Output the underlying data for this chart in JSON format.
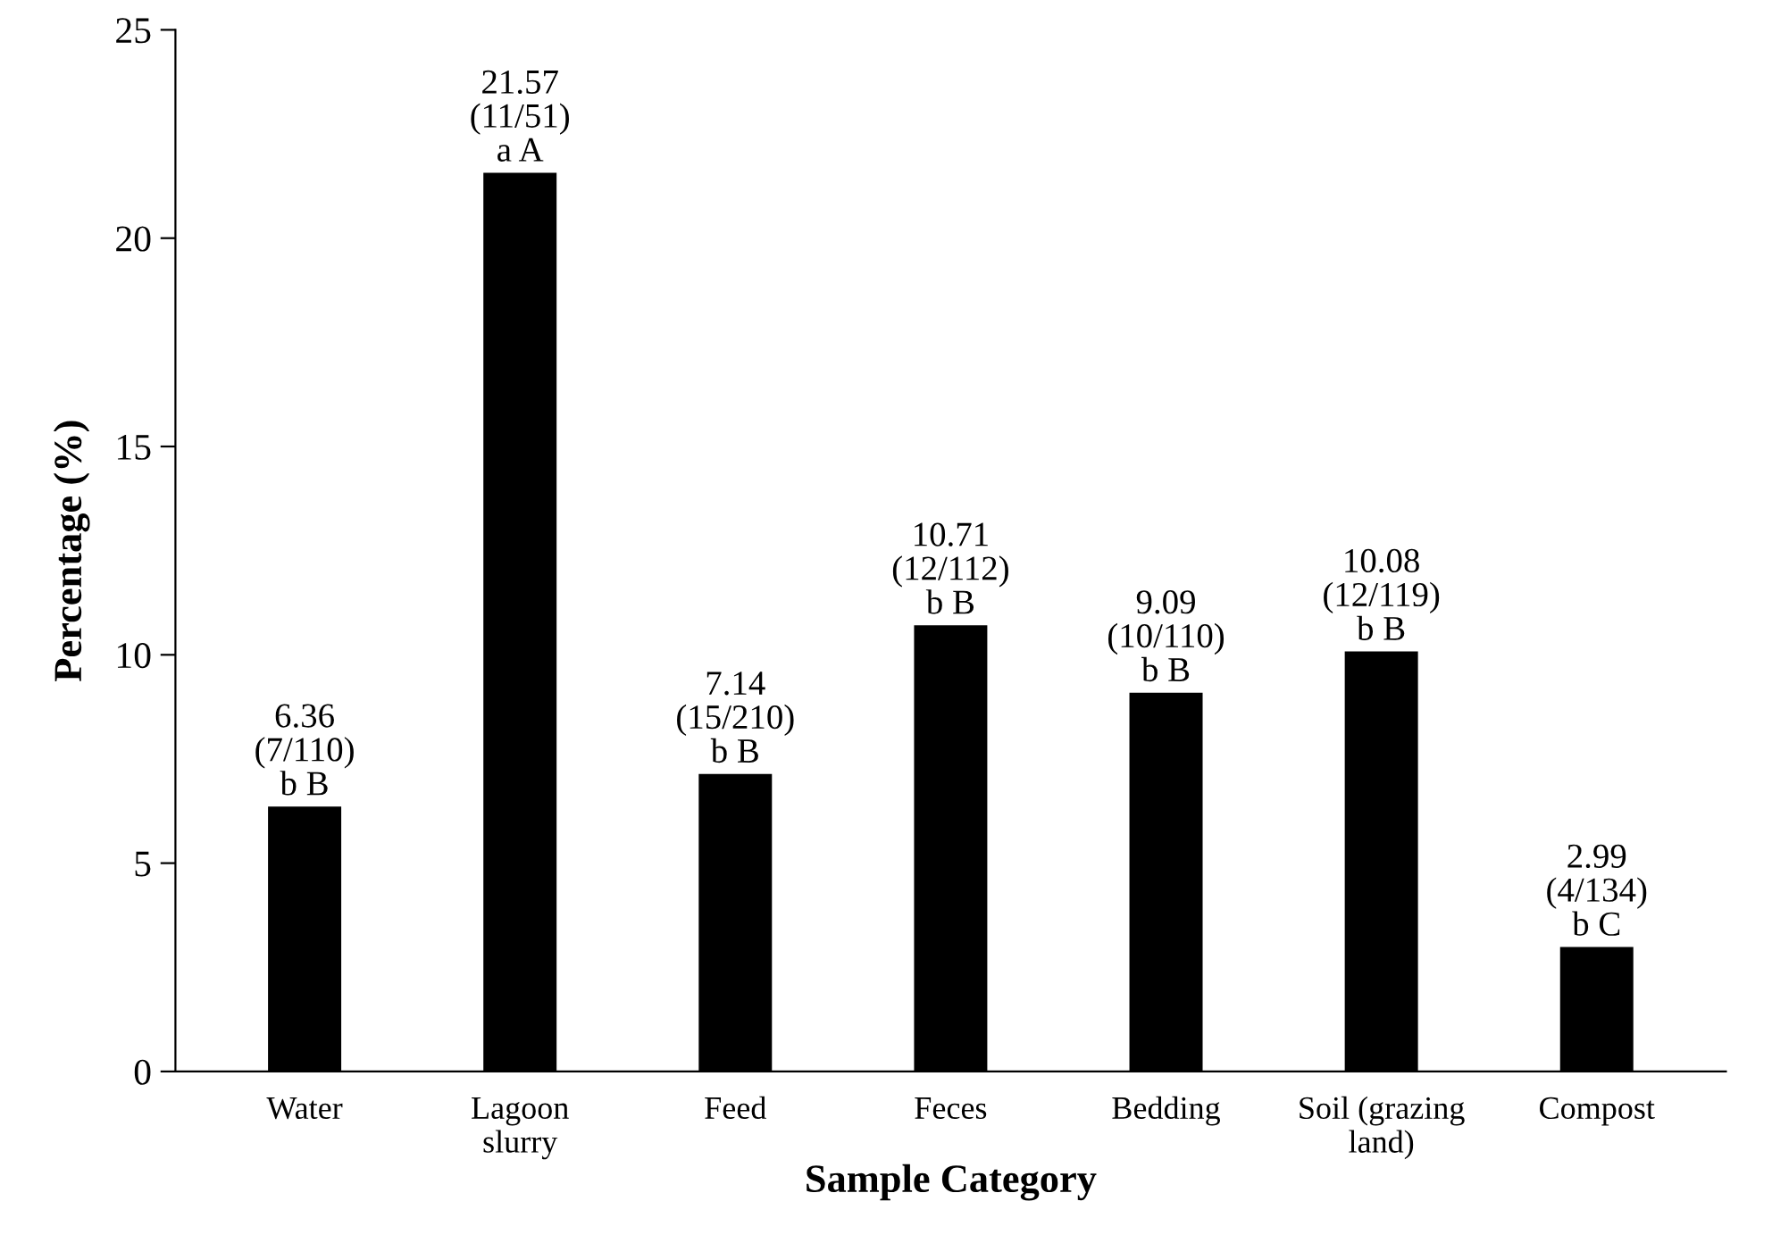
{
  "chart_data": {
    "type": "bar",
    "xlabel": "Sample Category",
    "ylabel": "Percentage (%)",
    "categories": [
      "Water",
      "Lagoon slurry",
      "Feed",
      "Feces",
      "Bedding",
      "Soil (grazing land)",
      "Compost"
    ],
    "values": [
      6.36,
      21.57,
      7.14,
      10.71,
      9.09,
      10.08,
      2.99
    ],
    "value_labels": [
      "6.36\n(7/110)\nb B",
      "21.57\n(11/51)\na A",
      "7.14\n(15/210)\nb B",
      "10.71\n(12/112)\nb B",
      "9.09\n(10/110)\nb B",
      "10.08\n(12/119)\nb B",
      "2.99\n(4/134)\nb C"
    ],
    "color": "#000000",
    "ylim": [
      0,
      25
    ],
    "yticks": [
      0,
      5,
      10,
      15,
      20,
      25
    ],
    "grid": false,
    "legend": false
  }
}
